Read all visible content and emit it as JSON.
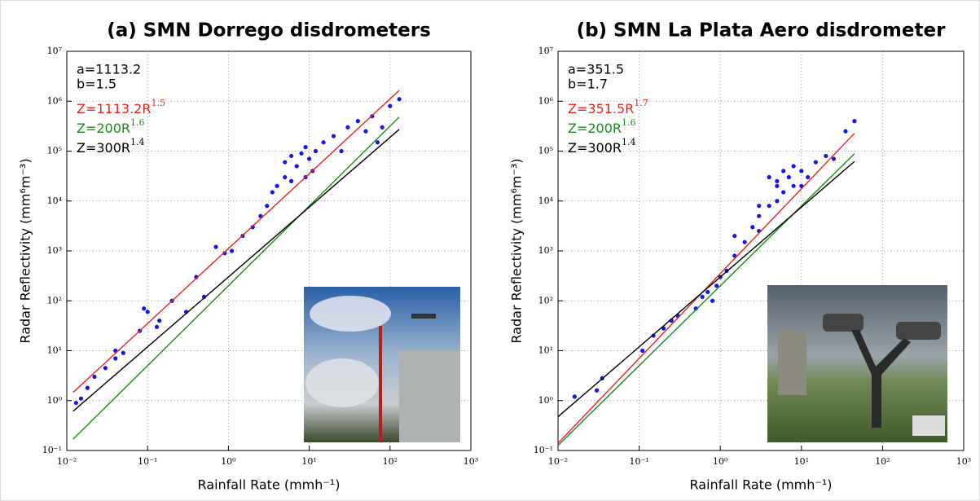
{
  "chart_data": [
    {
      "type": "scatter",
      "title": "(a) SMN Dorrego disdrometers",
      "xlabel": "Rainfall Rate (mmh⁻¹)",
      "ylabel": "Radar Reflectivity (mm⁶m⁻³)",
      "xscale": "log",
      "yscale": "log",
      "grid": true,
      "xlim": [
        0.01,
        1000
      ],
      "ylim": [
        0.1,
        10000000
      ],
      "xticks": [
        {
          "value": 0.01,
          "label": "10⁻²"
        },
        {
          "value": 0.1,
          "label": "10⁻¹"
        },
        {
          "value": 1,
          "label": "10⁰"
        },
        {
          "value": 10,
          "label": "10¹"
        },
        {
          "value": 100,
          "label": "10²"
        },
        {
          "value": 1000,
          "label": "10³"
        }
      ],
      "yticks": [
        {
          "value": 0.1,
          "label": "10⁻¹"
        },
        {
          "value": 1,
          "label": "10⁰"
        },
        {
          "value": 10,
          "label": "10¹"
        },
        {
          "value": 100,
          "label": "10²"
        },
        {
          "value": 1000,
          "label": "10³"
        },
        {
          "value": 10000,
          "label": "10⁴"
        },
        {
          "value": 100000,
          "label": "10⁵"
        },
        {
          "value": 1000000,
          "label": "10⁶"
        },
        {
          "value": 10000000,
          "label": "10⁷"
        }
      ],
      "annotations": [
        {
          "text": "a=1113.2",
          "color": "#e8231f"
        },
        {
          "text": "b=1.5",
          "color": "#e8231f"
        }
      ],
      "series": [
        {
          "kind": "points",
          "color": "#1414ee",
          "x": [
            0.013,
            0.015,
            0.018,
            0.022,
            0.03,
            0.04,
            0.04,
            0.05,
            0.08,
            0.09,
            0.1,
            0.13,
            0.14,
            0.2,
            0.3,
            0.4,
            0.5,
            0.7,
            0.9,
            1.1,
            1.5,
            2,
            2.5,
            3,
            3.5,
            4,
            5,
            5,
            6,
            7,
            8,
            9,
            10,
            12,
            15,
            20,
            25,
            30,
            40,
            50,
            60,
            80,
            100,
            130,
            70,
            9,
            11,
            6
          ],
          "values": [
            0.9,
            1.1,
            1.8,
            3,
            4.5,
            7,
            10,
            9,
            25,
            70,
            60,
            30,
            40,
            100,
            60,
            300,
            120,
            1200,
            900,
            1000,
            2000,
            3000,
            5000,
            8000,
            15000,
            20000,
            30000,
            60000,
            25000,
            50000,
            90000,
            120000,
            70000,
            100000,
            150000,
            200000,
            100000,
            300000,
            400000,
            250000,
            500000,
            300000,
            800000,
            1100000,
            150000,
            30000,
            40000,
            80000
          ]
        },
        {
          "kind": "line",
          "label": "Z=1113.2R",
          "label_exponent": "1.5",
          "color": "#e8231f",
          "x": [
            0.012,
            130
          ],
          "values": [
            1.46,
            1650000
          ]
        },
        {
          "kind": "line",
          "label": "Z=200R",
          "label_exponent": "1.6",
          "color": "#1a8a1a",
          "x": [
            0.012,
            130
          ],
          "values": [
            0.169,
            482000
          ]
        },
        {
          "kind": "line",
          "label": "Z=300R",
          "label_exponent": "1.4",
          "color": "#000000",
          "x": [
            0.012,
            130
          ],
          "values": [
            0.615,
            273000
          ]
        }
      ]
    },
    {
      "type": "scatter",
      "title": "(b) SMN La Plata Aero disdrometer",
      "xlabel": "Rainfall Rate (mmh⁻¹)",
      "ylabel": "Radar Reflectivity (mm⁶m⁻³)",
      "xscale": "log",
      "yscale": "log",
      "grid": true,
      "xlim": [
        0.01,
        1000
      ],
      "ylim": [
        0.1,
        10000000
      ],
      "xticks": [
        {
          "value": 0.01,
          "label": "10⁻²"
        },
        {
          "value": 0.1,
          "label": "10⁻¹"
        },
        {
          "value": 1,
          "label": "10⁰"
        },
        {
          "value": 10,
          "label": "10¹"
        },
        {
          "value": 100,
          "label": "10²"
        },
        {
          "value": 1000,
          "label": "10³"
        }
      ],
      "yticks": [
        {
          "value": 0.1,
          "label": "10⁻¹"
        },
        {
          "value": 1,
          "label": "10⁰"
        },
        {
          "value": 10,
          "label": "10¹"
        },
        {
          "value": 100,
          "label": "10²"
        },
        {
          "value": 1000,
          "label": "10³"
        },
        {
          "value": 10000,
          "label": "10⁴"
        },
        {
          "value": 100000,
          "label": "10⁵"
        },
        {
          "value": 1000000,
          "label": "10⁶"
        },
        {
          "value": 10000000,
          "label": "10⁷"
        }
      ],
      "annotations": [
        {
          "text": "a=351.5",
          "color": "#e8231f"
        },
        {
          "text": "b=1.7",
          "color": "#e8231f"
        }
      ],
      "series": [
        {
          "kind": "points",
          "color": "#1414ee",
          "x": [
            0.016,
            0.03,
            0.035,
            0.11,
            0.15,
            0.2,
            0.25,
            0.3,
            0.5,
            0.6,
            0.7,
            0.8,
            0.9,
            1,
            1.2,
            1.5,
            1.5,
            2,
            2.5,
            3,
            3,
            4,
            4,
            5,
            5,
            6,
            6,
            7,
            8,
            8,
            10,
            12,
            15,
            20,
            25,
            35,
            45,
            5,
            3,
            10
          ],
          "values": [
            1.2,
            1.6,
            2.8,
            10,
            20,
            28,
            40,
            50,
            70,
            120,
            150,
            100,
            200,
            300,
            400,
            800,
            2000,
            1500,
            3000,
            2500,
            5000,
            8000,
            30000,
            10000,
            20000,
            15000,
            40000,
            30000,
            20000,
            50000,
            40000,
            30000,
            60000,
            80000,
            70000,
            250000,
            400000,
            25000,
            8000,
            20000
          ]
        },
        {
          "kind": "line",
          "label": "Z=351.5R",
          "label_exponent": "1.7",
          "color": "#e8231f",
          "x": [
            0.01,
            45
          ],
          "values": [
            0.14,
            227000
          ]
        },
        {
          "kind": "line",
          "label": "Z=200R",
          "label_exponent": "1.6",
          "color": "#1a8a1a",
          "x": [
            0.01,
            45
          ],
          "values": [
            0.126,
            88300
          ]
        },
        {
          "kind": "line",
          "label": "Z=300R",
          "label_exponent": "1.4",
          "color": "#000000",
          "x": [
            0.01,
            45
          ],
          "values": [
            0.475,
            61900
          ]
        }
      ]
    }
  ]
}
